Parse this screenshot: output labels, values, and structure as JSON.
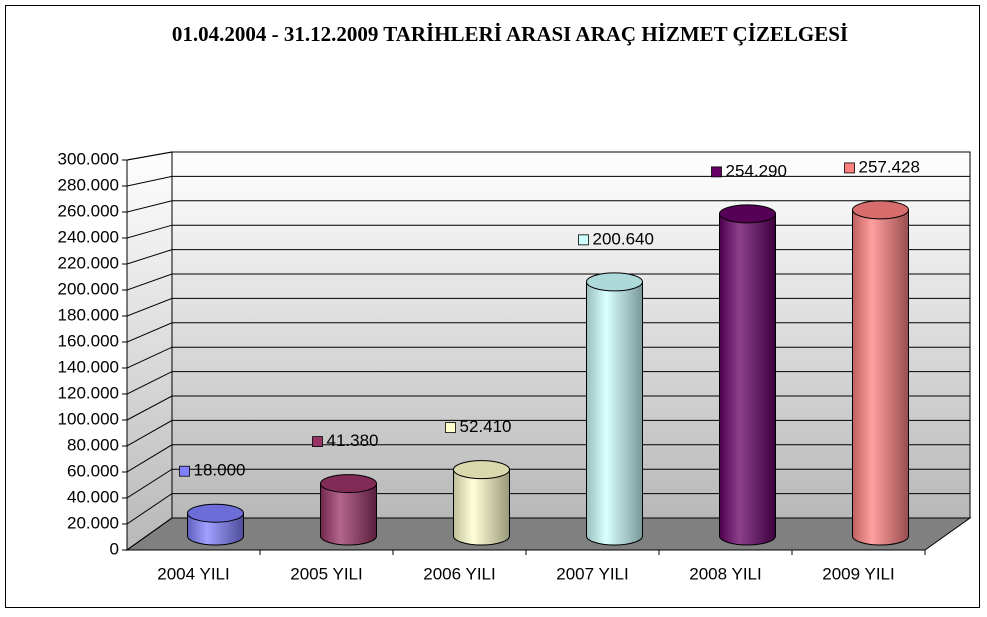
{
  "chart_data": {
    "type": "bar3d",
    "title": "01.04.2004 - 31.12.2009 TARİHLERİ ARASI ARAÇ HİZMET ÇİZELGESİ",
    "categories": [
      "2004 YILI",
      "2005 YILI",
      "2006 YILI",
      "2007 YILI",
      "2008 YILI",
      "2009 YILI"
    ],
    "values": [
      18000,
      41380,
      52410,
      200640,
      254290,
      257428
    ],
    "value_labels": [
      "18.000",
      "41.380",
      "52.410",
      "200.640",
      "254.290",
      "257.428"
    ],
    "colors": [
      "#8080ff",
      "#993366",
      "#ffffcc",
      "#ccffff",
      "#660066",
      "#ff8080"
    ],
    "ylim": [
      0,
      300000
    ],
    "yticks": [
      0,
      {
        "value": 20000,
        "label": "20.000"
      },
      {
        "value": 40000,
        "label": "40.000"
      },
      {
        "value": 60000,
        "label": "60.000"
      },
      {
        "value": 80000,
        "label": "80.000"
      },
      {
        "value": 100000,
        "label": "100.000"
      },
      {
        "value": 120000,
        "label": "120.000"
      },
      {
        "value": 140000,
        "label": "140.000"
      },
      {
        "value": 160000,
        "label": "160.000"
      },
      {
        "value": 180000,
        "label": "180.000"
      },
      {
        "value": 200000,
        "label": "200.000"
      },
      {
        "value": 220000,
        "label": "220.000"
      },
      {
        "value": 240000,
        "label": "240.000"
      },
      {
        "value": 260000,
        "label": "260.000"
      },
      {
        "value": 280000,
        "label": "280.000"
      },
      {
        "value": 300000,
        "label": "300.000"
      }
    ],
    "grid": true
  }
}
